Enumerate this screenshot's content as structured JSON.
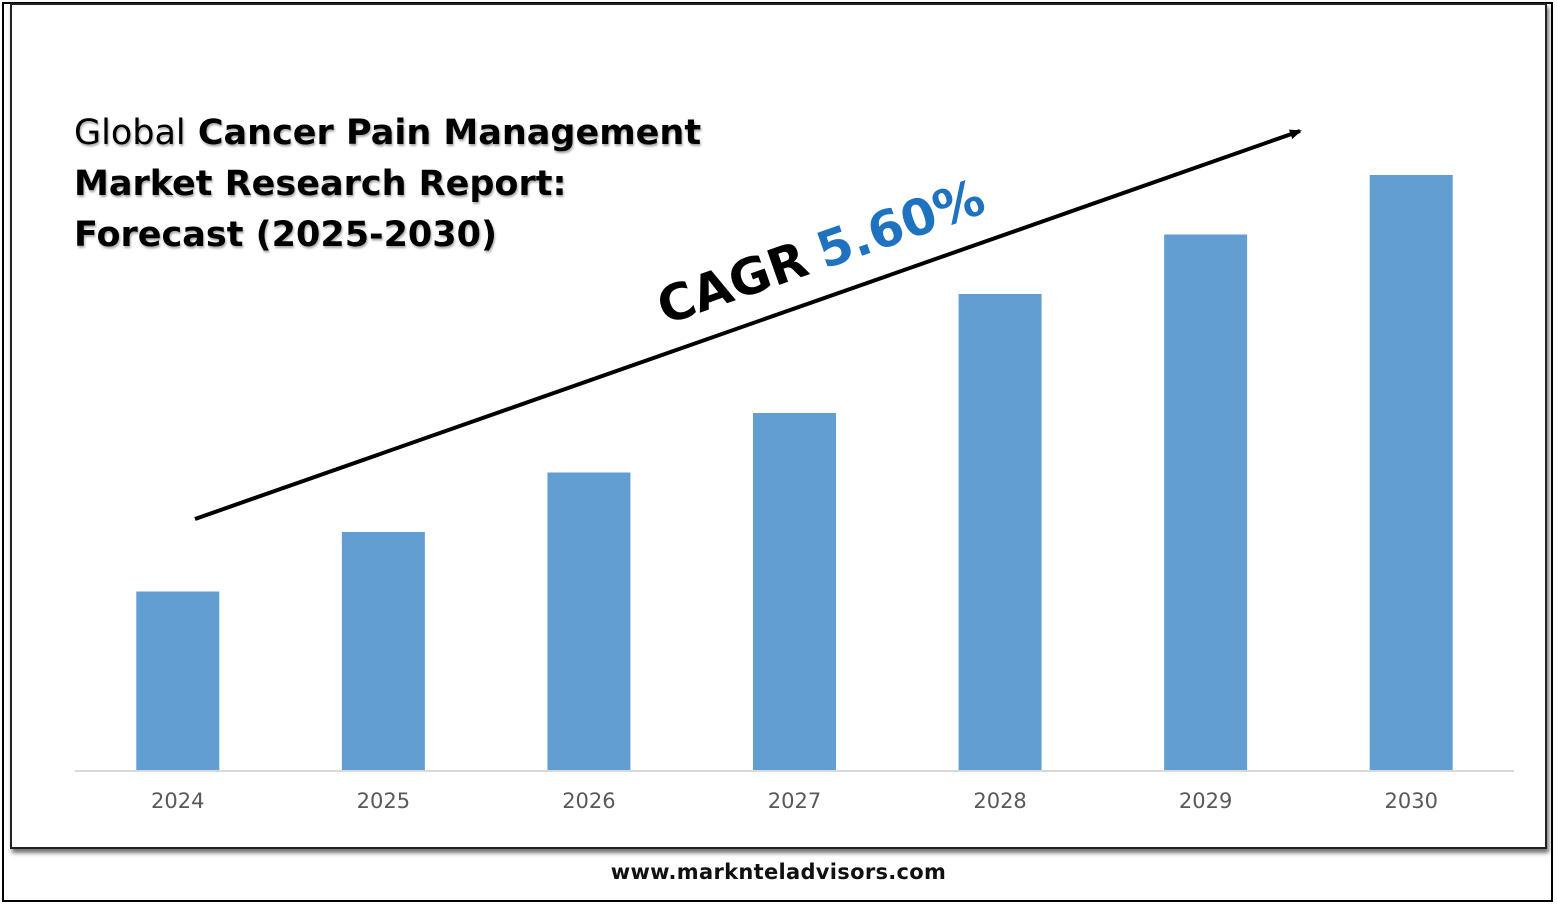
{
  "title": {
    "prefix": "Global",
    "line1_bold": "Cancer Pain Management",
    "line2": "Market Research Report:",
    "line3": "Forecast (2025-2030)"
  },
  "cagr": {
    "label": "CAGR",
    "value": "5.60%"
  },
  "footer": {
    "url": "www.marknteladvisors.com"
  },
  "colors": {
    "bar": "#629ed2",
    "cagr_value": "#1f72c0",
    "axis": "#d9d9d9",
    "tick": "#595959"
  },
  "chart_data": {
    "type": "bar",
    "categories": [
      "2024",
      "2025",
      "2026",
      "2027",
      "2028",
      "2029",
      "2030"
    ],
    "values": [
      30,
      40,
      50,
      60,
      80,
      90,
      100
    ],
    "ylim": [
      0,
      100
    ],
    "grid": false,
    "legend": "none",
    "xlabel": "",
    "ylabel": "",
    "annotation": "CAGR 5.60%"
  }
}
